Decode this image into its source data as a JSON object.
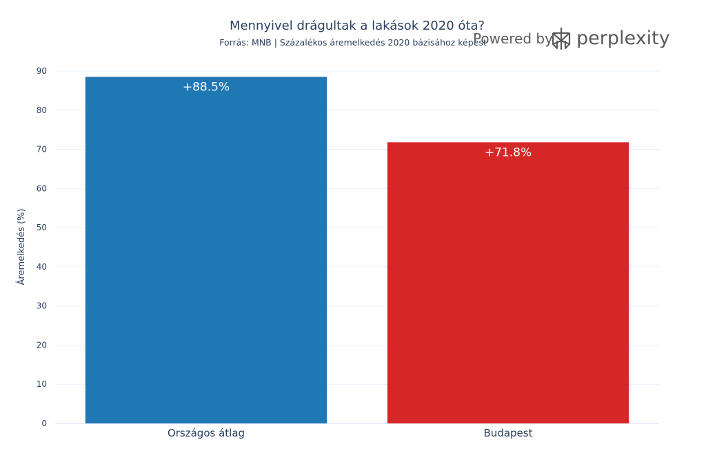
{
  "chart_data": {
    "type": "bar",
    "title": "Mennyivel drágultak a lakások 2020 óta?",
    "subtitle": "Forrás: MNB | Százalékos áremelkedés 2020 bázisához képest",
    "xlabel": "",
    "ylabel": "Áremelkedés (%)",
    "ylim": [
      0,
      90
    ],
    "yticks": [
      0,
      10,
      20,
      30,
      40,
      50,
      60,
      70,
      80,
      90
    ],
    "categories": [
      "Országos átlag",
      "Budapest"
    ],
    "values": [
      88.5,
      71.8
    ],
    "data_labels": [
      "+88.5%",
      "+71.8%"
    ],
    "colors": [
      "#1f77b4",
      "#d62728"
    ],
    "grid": true,
    "legend": "none"
  },
  "watermark": {
    "prefix": "Powered by",
    "brand": "perplexity",
    "icon": "perplexity-logo-icon"
  }
}
